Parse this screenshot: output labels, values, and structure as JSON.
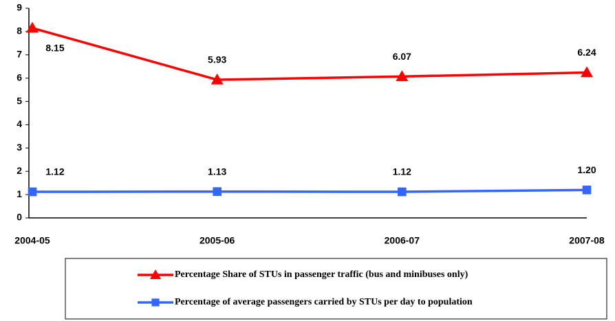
{
  "chart_data": {
    "type": "line",
    "categories": [
      "2004-05",
      "2005-06",
      "2006-07",
      "2007-08"
    ],
    "series": [
      {
        "name": "Percentage Share of STUs in passenger traffic (bus and minibuses only)",
        "color": "#ff0000",
        "marker": "triangle",
        "values": [
          8.15,
          5.93,
          6.07,
          6.24
        ]
      },
      {
        "name": "Percentage of average passengers carried by STUs per day to population",
        "color": "#3366ff",
        "marker": "square",
        "values": [
          1.12,
          1.13,
          1.12,
          1.2
        ],
        "value_labels": [
          "1.12",
          "1.13",
          "1.12",
          "1.20"
        ]
      }
    ],
    "ylim": [
      0,
      9
    ],
    "yticks": [
      0,
      1,
      2,
      3,
      4,
      5,
      6,
      7,
      8,
      9
    ],
    "grid": false,
    "legend": "bottom"
  }
}
